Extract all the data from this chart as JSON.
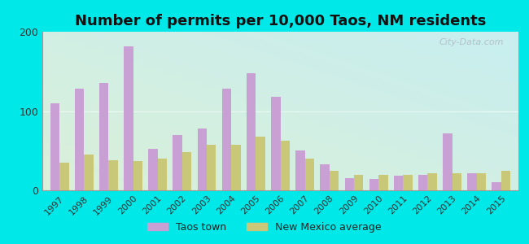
{
  "title": "Number of permits per 10,000 Taos, NM residents",
  "years": [
    1997,
    1998,
    1999,
    2000,
    2001,
    2002,
    2003,
    2004,
    2005,
    2006,
    2007,
    2008,
    2009,
    2010,
    2011,
    2012,
    2013,
    2014,
    2015
  ],
  "taos": [
    110,
    128,
    135,
    182,
    52,
    70,
    78,
    128,
    148,
    118,
    50,
    33,
    15,
    14,
    18,
    20,
    72,
    22,
    10
  ],
  "nm_avg": [
    35,
    45,
    38,
    37,
    40,
    48,
    57,
    57,
    68,
    63,
    40,
    25,
    20,
    20,
    20,
    22,
    22,
    22,
    25
  ],
  "taos_color": "#c8a0d4",
  "nm_color": "#c8c878",
  "background_outer": "#00e8e8",
  "background_inner_topleft": "#daf0d8",
  "background_inner_bottomright": "#c8eef0",
  "title_color": "#111111",
  "title_fontsize": 13,
  "ylabel_max": 200,
  "yticks": [
    0,
    100,
    200
  ],
  "legend_taos": "Taos town",
  "legend_nm": "New Mexico average",
  "bar_width": 0.38,
  "watermark": "City-Data.com"
}
